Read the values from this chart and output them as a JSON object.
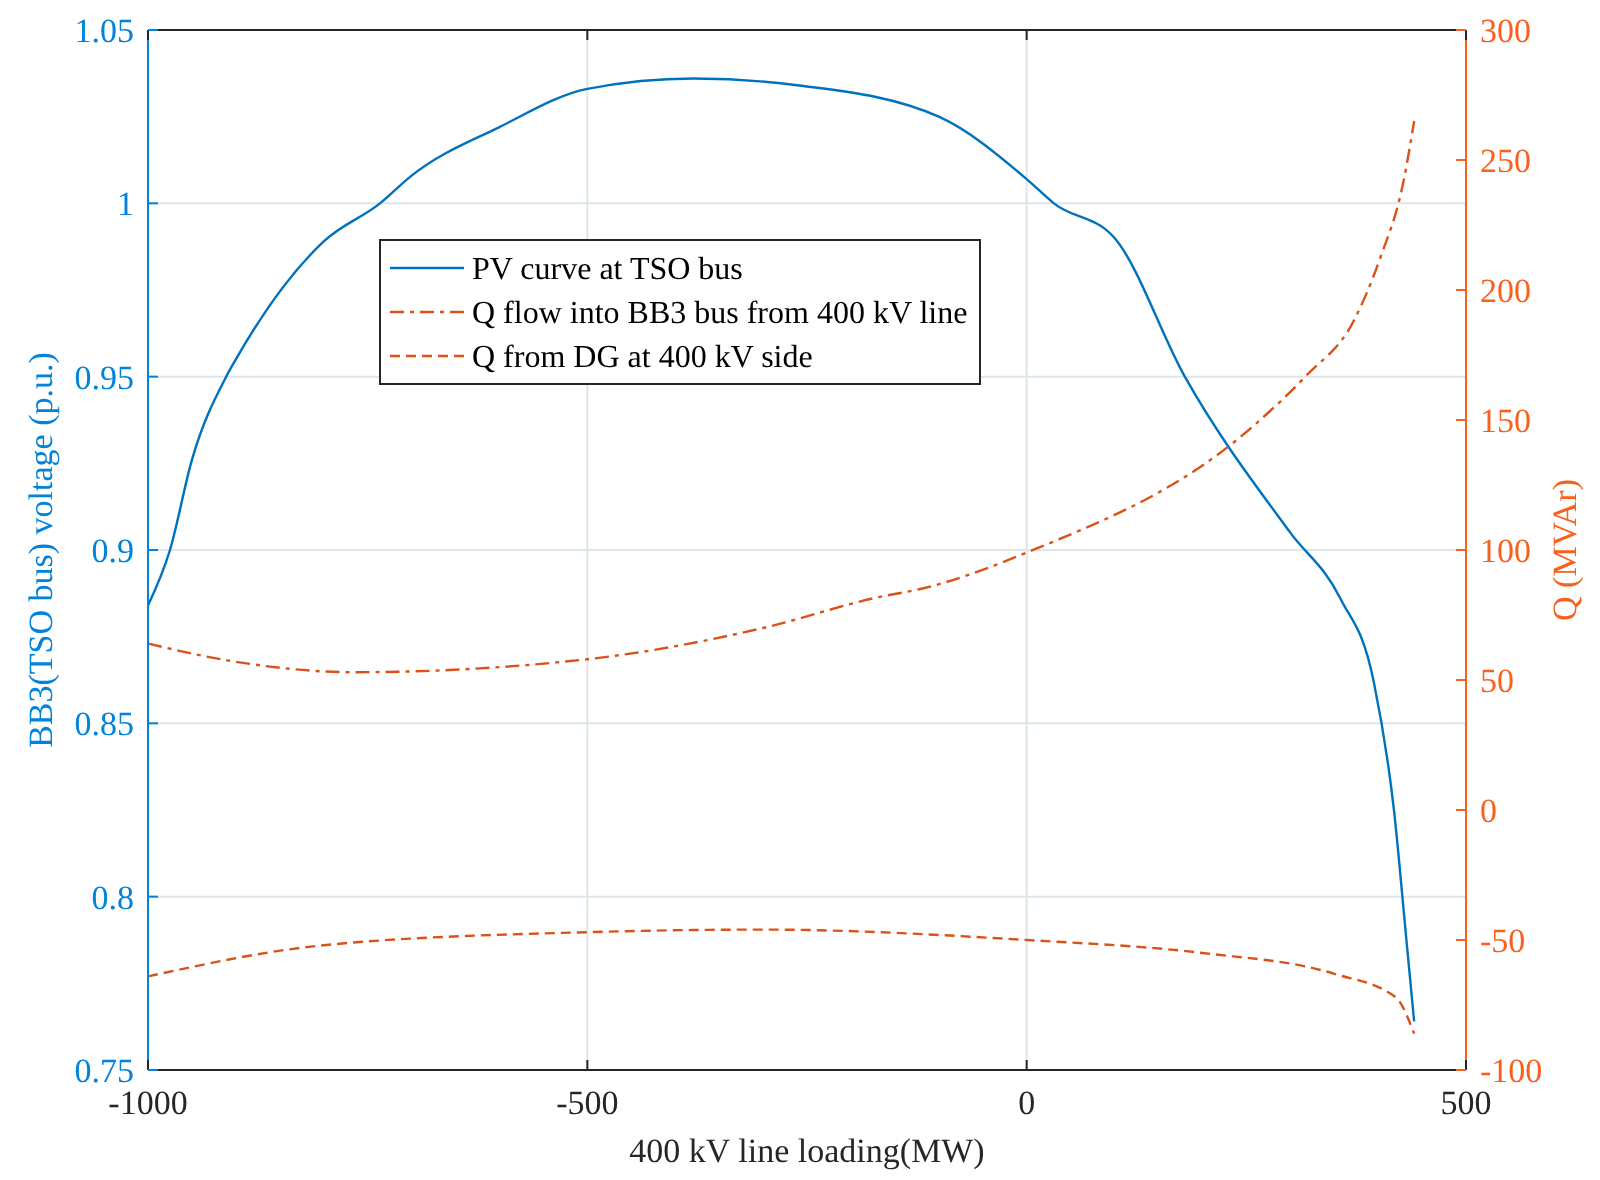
{
  "chart_data": {
    "type": "line",
    "xlabel": "400 kV line loading(MW)",
    "ylabel": "BB3(TSO bus) voltage (p.u.)",
    "y2label": "Q (MVAr)",
    "xlim": [
      -1000,
      500
    ],
    "xticks": [
      -1000,
      -500,
      0,
      500
    ],
    "ylim": [
      0.75,
      1.05
    ],
    "yticks": [
      0.75,
      0.8,
      0.85,
      0.9,
      0.95,
      1,
      1.05
    ],
    "y2lim": [
      -100,
      300
    ],
    "y2ticks": [
      -100,
      -50,
      0,
      50,
      100,
      150,
      200,
      250,
      300
    ],
    "grid": true,
    "legend": "top left",
    "series": [
      {
        "name": "PV curve at TSO bus",
        "color": "#0072bd",
        "line_style": "solid",
        "x": [
          -1000,
          -975,
          -950,
          -911,
          -900,
          -800,
          -736,
          -700,
          -600,
          -500,
          -379,
          -259,
          -100,
          0,
          31,
          100,
          180,
          300,
          357,
          395,
          418,
          432,
          441
        ],
        "values": [
          0.884,
          0.9,
          0.926,
          0.95,
          0.955,
          0.989,
          1,
          1.008,
          1.022,
          1.033,
          1.036,
          1.034,
          1.025,
          1.007,
          1,
          0.99,
          0.95,
          0.905,
          0.886,
          0.862,
          0.825,
          0.788,
          0.764
        ]
      },
      {
        "name": "Q flow into BB3 bus from 400 kV line",
        "color": "#d95319",
        "line_style": "dashdot",
        "axis": "y2",
        "x": [
          -1000,
          -900,
          -766,
          -500,
          -300,
          -167,
          -121,
          0,
          259,
          318,
          372,
          402,
          429,
          441
        ],
        "values": [
          64,
          57,
          53,
          58,
          70,
          82,
          85,
          99,
          148,
          167,
          188,
          212,
          242,
          265
        ]
      },
      {
        "name": "Q from DG at 400 kV side",
        "color": "#d95319",
        "line_style": "dashed",
        "axis": "y2",
        "x": [
          -1000,
          -800,
          -500,
          -300,
          0,
          200,
          350,
          420,
          441
        ],
        "values": [
          -64,
          -52,
          -47,
          -46,
          -50,
          -55,
          -63,
          -72,
          -86
        ]
      }
    ]
  }
}
